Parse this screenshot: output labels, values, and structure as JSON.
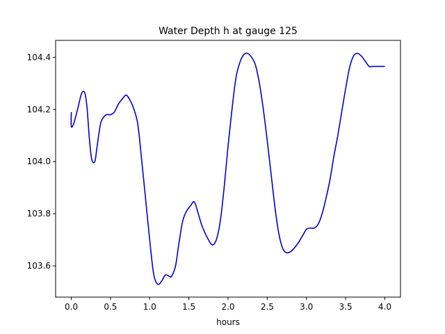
{
  "chart_data": {
    "type": "line",
    "title": "Water Depth h at gauge 125",
    "xlabel": "hours",
    "ylabel": "",
    "xlim": [
      -0.2,
      4.2
    ],
    "ylim": [
      103.48,
      104.465
    ],
    "xticks": [
      0.0,
      0.5,
      1.0,
      1.5,
      2.0,
      2.5,
      3.0,
      3.5,
      4.0
    ],
    "xtick_labels": [
      "0.0",
      "0.5",
      "1.0",
      "1.5",
      "2.0",
      "2.5",
      "3.0",
      "3.5",
      "4.0"
    ],
    "yticks": [
      103.6,
      103.8,
      104.0,
      104.2,
      104.4
    ],
    "ytick_labels": [
      "103.6",
      "103.8",
      "104.0",
      "104.2",
      "104.4"
    ],
    "grid": false,
    "legend": "none",
    "series": [
      {
        "color": "#0000cc",
        "x": [
          0.0,
          0.0,
          0.03,
          0.08,
          0.13,
          0.17,
          0.2,
          0.23,
          0.26,
          0.3,
          0.33,
          0.37,
          0.4,
          0.45,
          0.5,
          0.55,
          0.6,
          0.65,
          0.7,
          0.75,
          0.8,
          0.85,
          0.9,
          0.95,
          1.0,
          1.05,
          1.1,
          1.15,
          1.2,
          1.25,
          1.28,
          1.33,
          1.37,
          1.42,
          1.47,
          1.52,
          1.57,
          1.62,
          1.66,
          1.7,
          1.75,
          1.8,
          1.85,
          1.9,
          1.95,
          2.0,
          2.05,
          2.1,
          2.15,
          2.2,
          2.25,
          2.3,
          2.35,
          2.4,
          2.45,
          2.5,
          2.55,
          2.6,
          2.65,
          2.7,
          2.75,
          2.8,
          2.85,
          2.9,
          2.95,
          3.0,
          3.05,
          3.1,
          3.15,
          3.2,
          3.25,
          3.3,
          3.35,
          3.4,
          3.45,
          3.5,
          3.55,
          3.6,
          3.65,
          3.7,
          3.75,
          3.8,
          3.85,
          3.9,
          3.93,
          3.97,
          4.0
        ],
        "y": [
          104.19,
          104.135,
          104.145,
          104.2,
          104.26,
          104.265,
          104.21,
          104.09,
          104.01,
          104.0,
          104.06,
          104.14,
          104.165,
          104.18,
          104.18,
          104.19,
          104.22,
          104.24,
          104.255,
          104.235,
          104.2,
          104.14,
          104.0,
          103.85,
          103.7,
          103.57,
          103.53,
          103.54,
          103.565,
          103.56,
          103.56,
          103.6,
          103.68,
          103.77,
          103.81,
          103.83,
          103.845,
          103.8,
          103.76,
          103.73,
          103.7,
          103.68,
          103.7,
          103.77,
          103.9,
          104.06,
          104.2,
          104.32,
          104.38,
          104.41,
          104.415,
          104.4,
          104.37,
          104.3,
          104.2,
          104.08,
          103.95,
          103.82,
          103.72,
          103.665,
          103.65,
          103.655,
          103.67,
          103.69,
          103.715,
          103.74,
          103.745,
          103.745,
          103.76,
          103.8,
          103.86,
          103.93,
          104.02,
          104.1,
          104.19,
          104.28,
          104.36,
          104.405,
          104.415,
          104.405,
          104.385,
          104.365,
          104.365,
          104.365,
          104.365,
          104.365,
          104.365
        ]
      }
    ]
  }
}
